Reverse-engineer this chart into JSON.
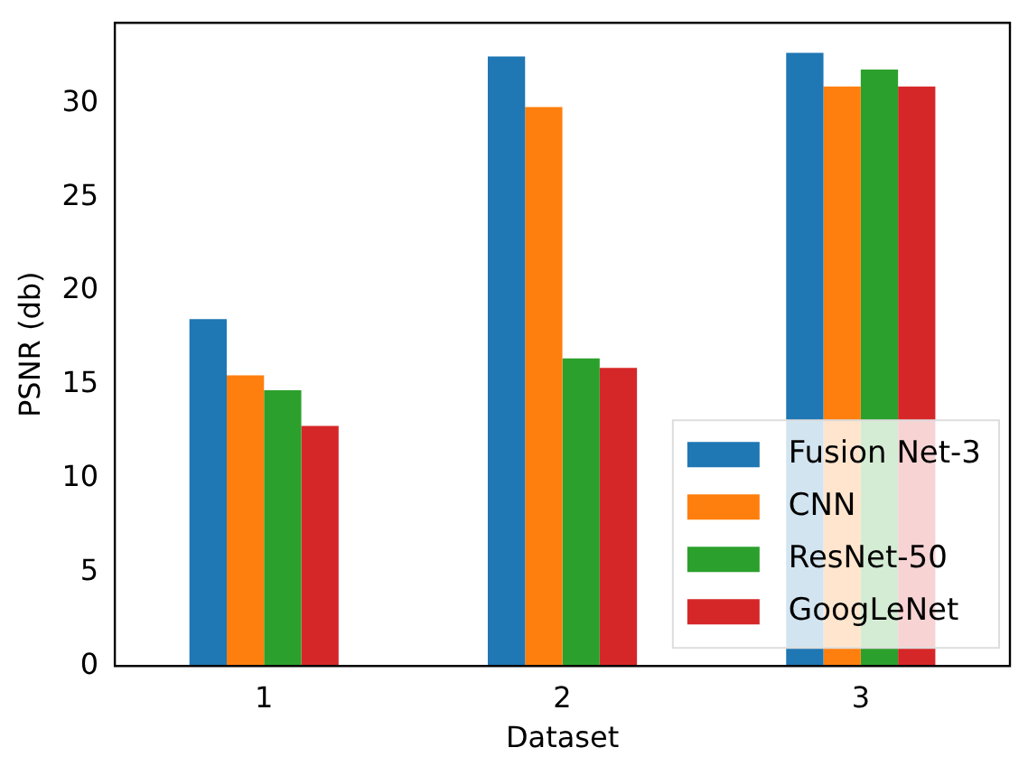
{
  "chart_data": {
    "type": "bar",
    "xlabel": "Dataset",
    "ylabel": "PSNR (db)",
    "categories": [
      "1",
      "2",
      "3"
    ],
    "series": [
      {
        "name": "Fusion Net-3",
        "color": "#1f77b4",
        "values": [
          18.5,
          32.5,
          32.7
        ]
      },
      {
        "name": "CNN",
        "color": "#ff7f0e",
        "values": [
          15.5,
          29.8,
          30.9
        ]
      },
      {
        "name": "ResNet-50",
        "color": "#2ca02c",
        "values": [
          14.7,
          16.4,
          31.8
        ]
      },
      {
        "name": "GoogLeNet",
        "color": "#d62728",
        "values": [
          12.8,
          15.9,
          30.9
        ]
      }
    ],
    "ylim": [
      0,
      34.3
    ],
    "yticks": [
      0,
      5,
      10,
      15,
      20,
      25,
      30
    ],
    "grid": false,
    "legend": "bottom right"
  }
}
